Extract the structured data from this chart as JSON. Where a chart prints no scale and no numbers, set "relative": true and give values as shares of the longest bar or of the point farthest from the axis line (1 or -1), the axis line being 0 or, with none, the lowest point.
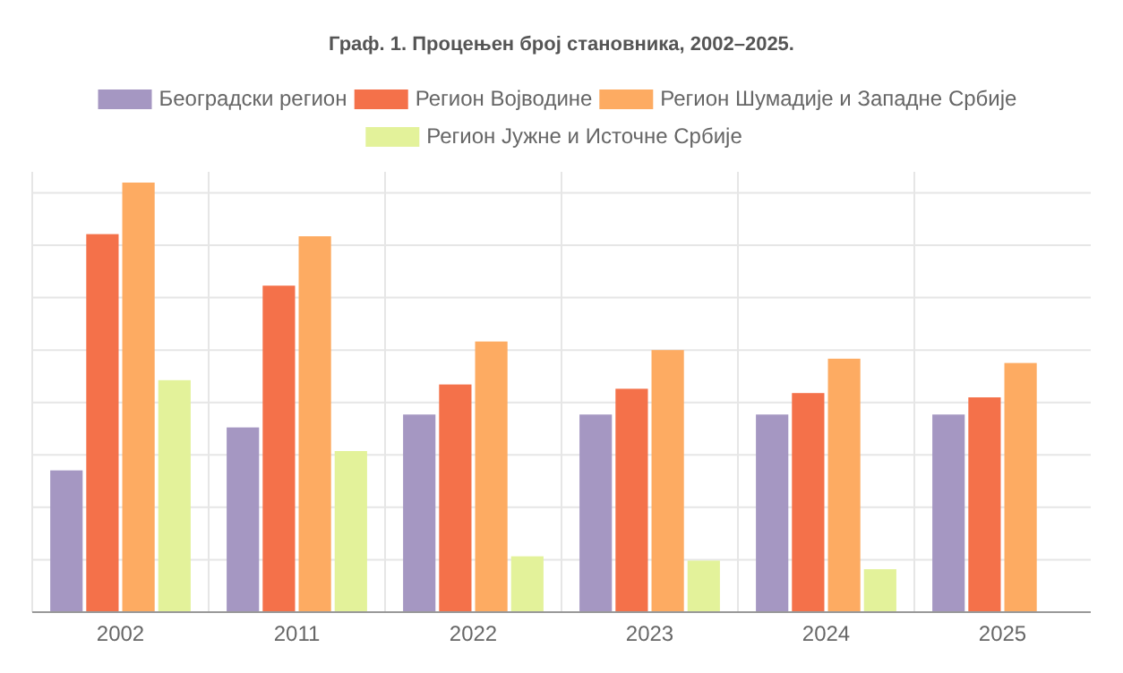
{
  "chart_data": {
    "type": "bar",
    "title": "Граф. 1. Процењен број становника, 2002–2025.",
    "relative": true,
    "grid": true,
    "legend": "top",
    "categories": [
      "2002",
      "2011",
      "2022",
      "2023",
      "2024",
      "2025"
    ],
    "series": [
      {
        "name": "Београдски регион",
        "color": "#a597c2",
        "values": [
          0.33,
          0.43,
          0.46,
          0.46,
          0.46,
          0.46
        ]
      },
      {
        "name": "Регион Војводине",
        "color": "#f4714a",
        "values": [
          0.88,
          0.76,
          0.53,
          0.52,
          0.51,
          0.5
        ]
      },
      {
        "name": "Регион Шумадије и Западне Србије",
        "color": "#fdab62",
        "values": [
          1,
          0.875,
          0.63,
          0.61,
          0.59,
          0.58
        ]
      },
      {
        "name": "Регион Јужне и Источне Србије",
        "color": "#e3f29a",
        "values": [
          0.54,
          0.375,
          0.13,
          0.12,
          0.1,
          null
        ]
      }
    ]
  }
}
